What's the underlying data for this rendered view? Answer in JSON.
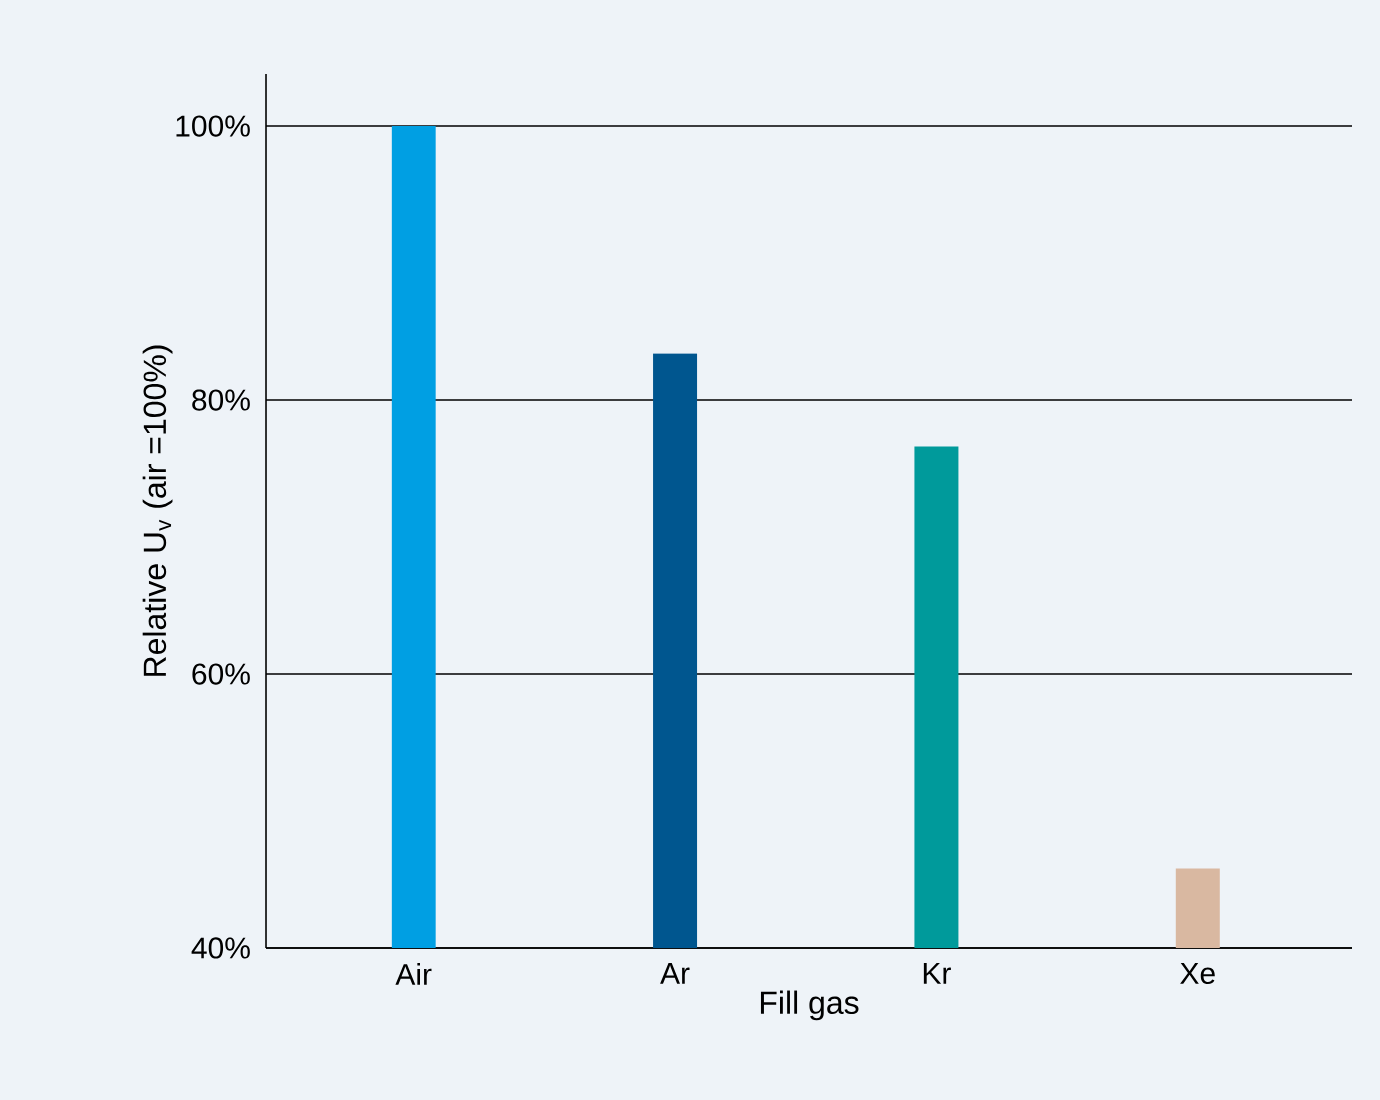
{
  "chart_data": {
    "type": "bar",
    "xlabel": "Fill gas",
    "ylabel": "Relative U$_{v}$ (air =100%)",
    "categories": [
      "Air",
      "Ar",
      "Kr",
      "Xe"
    ],
    "values": [
      100,
      83.4,
      76.6,
      45.8
    ],
    "colors": [
      "#009fe3",
      "#00568f",
      "#009a9b",
      "#d9b8a1"
    ],
    "ylim": [
      40,
      103.8
    ],
    "yticks": [
      {
        "value": 40,
        "label": "40%"
      },
      {
        "value": 60,
        "label": "60%"
      },
      {
        "value": 80,
        "label": "80%"
      },
      {
        "value": 100,
        "label": "100%"
      }
    ],
    "grid": "y"
  }
}
